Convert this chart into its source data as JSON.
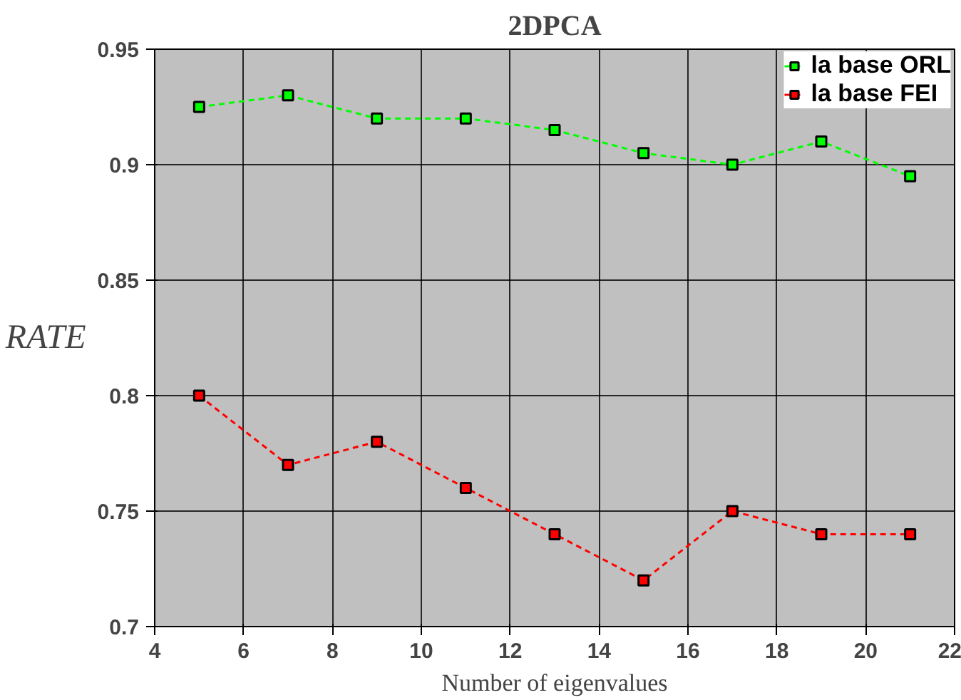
{
  "chart_data": {
    "type": "line",
    "title": "2DPCA",
    "xlabel": "Number of eigenvalues",
    "ylabel": "RATE",
    "x": [
      5,
      7,
      9,
      11,
      13,
      15,
      17,
      19,
      21
    ],
    "series": [
      {
        "name": "la base ORL",
        "color": "#00ff00",
        "values": [
          0.925,
          0.93,
          0.92,
          0.92,
          0.915,
          0.905,
          0.9,
          0.91,
          0.895
        ]
      },
      {
        "name": "la base FEI",
        "color": "#ff0000",
        "values": [
          0.8,
          0.77,
          0.78,
          0.76,
          0.74,
          0.72,
          0.75,
          0.74,
          0.74
        ]
      }
    ],
    "xlim": [
      4,
      22
    ],
    "xticks": [
      4,
      6,
      8,
      10,
      12,
      14,
      16,
      18,
      20,
      22
    ],
    "ylim": [
      0.7,
      0.95
    ],
    "yticks": [
      {
        "value": 0.7,
        "label": "0.7"
      },
      {
        "value": 0.75,
        "label": "0.75"
      },
      {
        "value": 0.8,
        "label": "0.8"
      },
      {
        "value": 0.85,
        "label": "0.85"
      },
      {
        "value": 0.9,
        "label": "0.9"
      },
      {
        "value": 0.95,
        "label": "0.95"
      }
    ],
    "grid": true,
    "legend": "top right",
    "marker": "square",
    "line_style": "dashed"
  }
}
